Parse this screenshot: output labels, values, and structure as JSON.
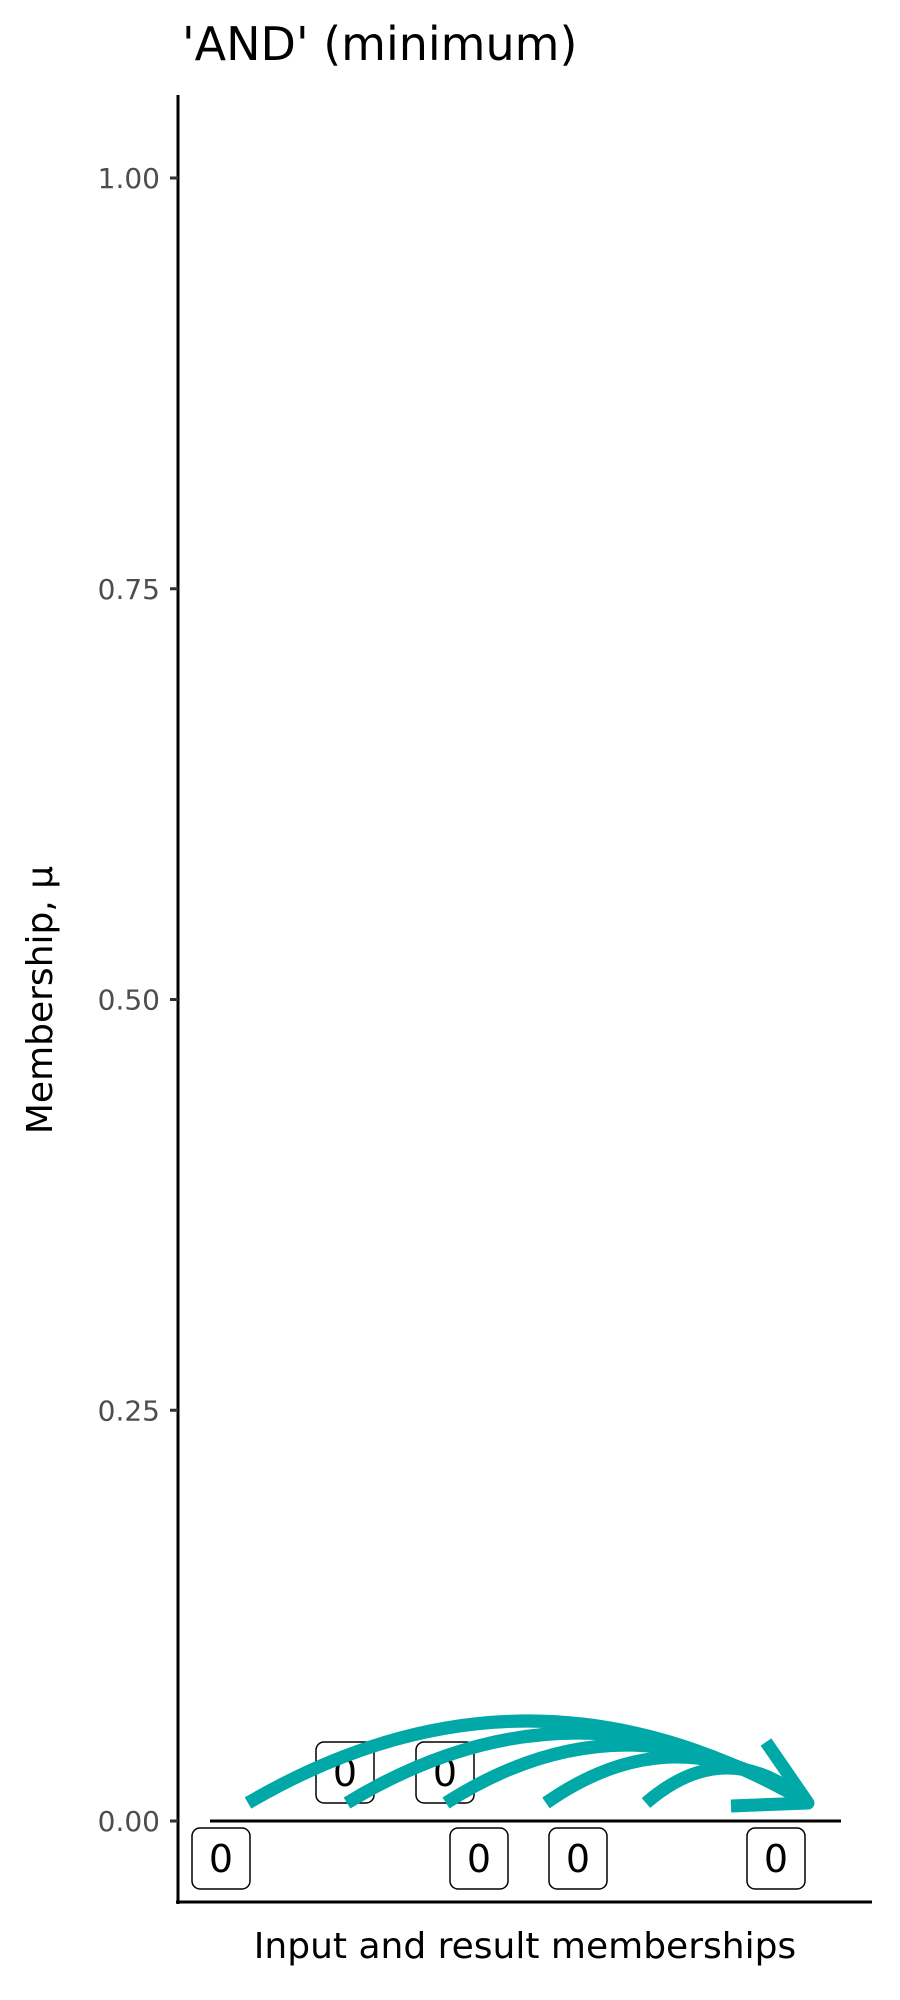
{
  "chart_data": {
    "type": "diagram-arrows",
    "title": "'AND' (minimum)",
    "xlabel": "Input and result memberships",
    "ylabel": "Membership, μ",
    "ylim": [
      -0.05,
      1.05
    ],
    "yticks": [
      {
        "value": 0.0,
        "label": "0.00"
      },
      {
        "value": 0.25,
        "label": "0.25"
      },
      {
        "value": 0.5,
        "label": "0.50"
      },
      {
        "value": 0.75,
        "label": "0.75"
      },
      {
        "value": 1.0,
        "label": "1.00"
      }
    ],
    "inputs": [
      {
        "value": 0,
        "label": "0"
      },
      {
        "value": 0,
        "label": "0"
      },
      {
        "value": 0,
        "label": "0"
      },
      {
        "value": 0,
        "label": "0"
      },
      {
        "value": 0,
        "label": "0"
      }
    ],
    "result": {
      "value": 0,
      "label": "0"
    },
    "arrow_color": "#00A9A8",
    "grid": false
  }
}
